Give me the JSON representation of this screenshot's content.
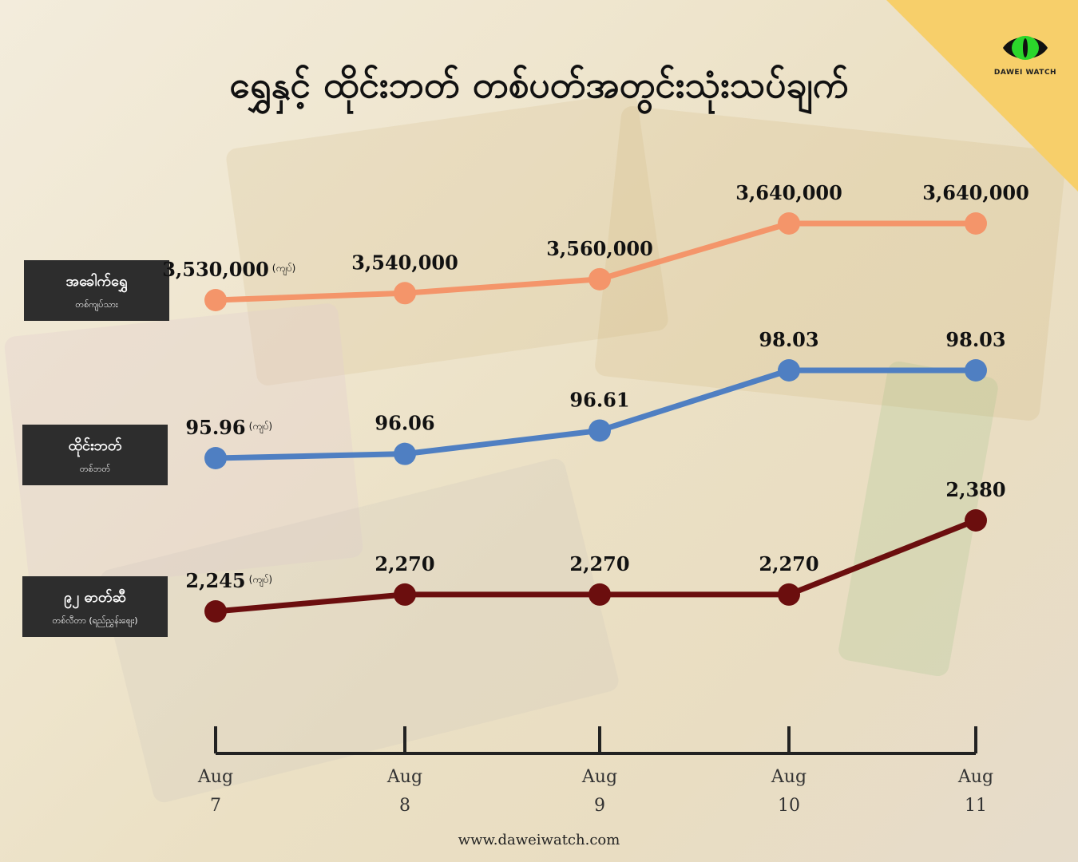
{
  "title": "ရွှေနှင့် ထိုင်းဘတ် တစ်ပတ်အတွင်းသုံးသပ်ချက်",
  "logo_text": "DAWEI WATCH",
  "footer": "www.daweiwatch.com",
  "series_labels": [
    {
      "main": "အခေါက်ရွှေ",
      "sub": "တစ်ကျပ်သား"
    },
    {
      "main": "ထိုင်းဘတ်",
      "sub": "တစ်ဘတ်"
    },
    {
      "main": "၉၂ ဓာတ်ဆီ",
      "sub": "တစ်လီတာ (ရည်ညွှန်းဈေး)"
    }
  ],
  "unit_label": "(ကျပ်)",
  "chart_data": {
    "type": "line",
    "x": [
      [
        "Aug",
        "7"
      ],
      [
        "Aug",
        "8"
      ],
      [
        "Aug",
        "9"
      ],
      [
        "Aug",
        "10"
      ],
      [
        "Aug",
        "11"
      ]
    ],
    "series": [
      {
        "name": "အခေါက်ရွှေ",
        "color": "#f4956a",
        "values": [
          3530000,
          3540000,
          3560000,
          3640000,
          3640000
        ],
        "labels": [
          "3,530,000",
          "3,540,000",
          "3,560,000",
          "3,640,000",
          "3,640,000"
        ]
      },
      {
        "name": "ထိုင်းဘတ်",
        "color": "#4f7fc2",
        "values": [
          95.96,
          96.06,
          96.61,
          98.03,
          98.03
        ],
        "labels": [
          "95.96",
          "96.06",
          "96.61",
          "98.03",
          "98.03"
        ]
      },
      {
        "name": "၉၂ ဓာတ်ဆီ",
        "color": "#6b0e0e",
        "values": [
          2245,
          2270,
          2270,
          2270,
          2380
        ],
        "labels": [
          "2,245",
          "2,270",
          "2,270",
          "2,270",
          "2,380"
        ]
      }
    ]
  }
}
